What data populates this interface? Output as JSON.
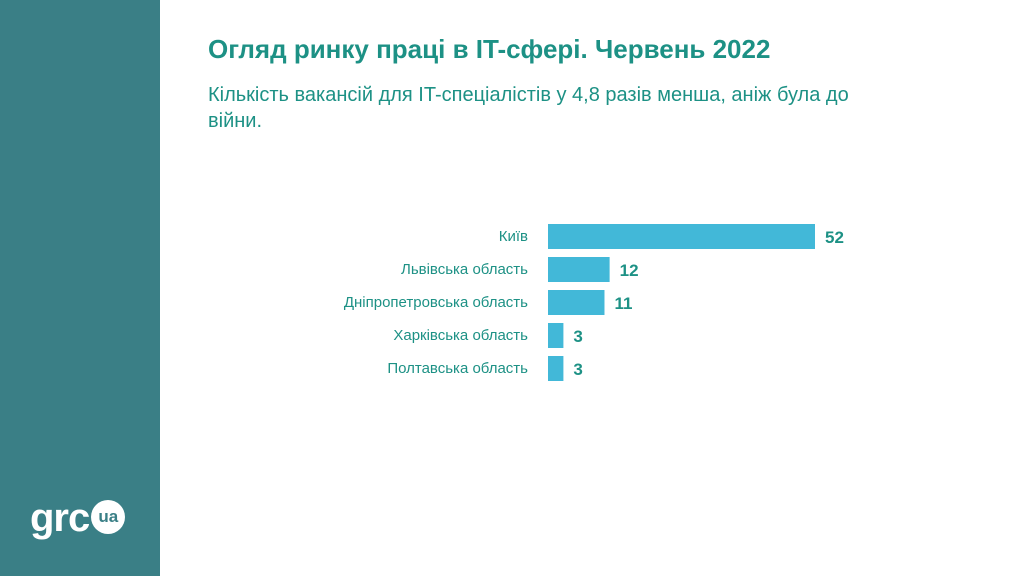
{
  "page": {
    "title": "Огляд ринку праці в IT-сфері. Червень 2022",
    "subtitle": "Кількість вакансій для IT-спеціалістів у 4,8 разів менша, аніж була до війни.",
    "logo_text": "grc",
    "logo_badge": "ua"
  },
  "colors": {
    "sidebar": "#3a7f86",
    "accent_text": "#1d9185",
    "bar": "#42b8d8"
  },
  "chart_data": {
    "type": "bar",
    "orientation": "horizontal",
    "title": "",
    "xlabel": "",
    "ylabel": "",
    "categories": [
      "Київ",
      "Львівська область",
      "Дніпропетровська область",
      "Харківська область",
      "Полтавська область"
    ],
    "values": [
      52,
      12,
      11,
      3,
      3
    ],
    "xlim": [
      0,
      52
    ],
    "grid": false,
    "legend": "none"
  }
}
